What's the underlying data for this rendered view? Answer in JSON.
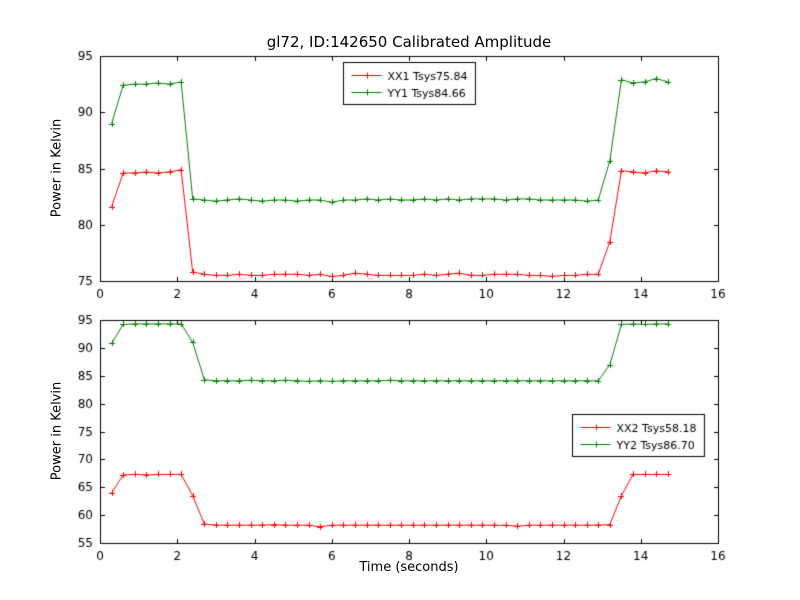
{
  "figure": {
    "title": "gl72, ID:142650 Calibrated Amplitude",
    "background": "#ffffff",
    "frame_color": "#000000"
  },
  "chart_data": [
    {
      "type": "line",
      "title": "gl72, ID:142650 Calibrated Amplitude",
      "xlabel": "",
      "ylabel": "Power in Kelvin",
      "xlim": [
        0,
        16
      ],
      "ylim": [
        75,
        95
      ],
      "xticks": [
        0,
        2,
        4,
        6,
        8,
        10,
        12,
        14,
        16
      ],
      "yticks": [
        75,
        80,
        85,
        90,
        95
      ],
      "grid": false,
      "legend_position": "top-center",
      "marker": "plus",
      "x": [
        0.3,
        0.6,
        0.9,
        1.2,
        1.5,
        1.8,
        2.1,
        2.4,
        2.7,
        3.0,
        3.3,
        3.6,
        3.9,
        4.2,
        4.5,
        4.8,
        5.1,
        5.4,
        5.7,
        6.0,
        6.3,
        6.6,
        6.9,
        7.2,
        7.5,
        7.8,
        8.1,
        8.4,
        8.7,
        9.0,
        9.3,
        9.6,
        9.9,
        10.2,
        10.5,
        10.8,
        11.1,
        11.4,
        11.7,
        12.0,
        12.3,
        12.6,
        12.9,
        13.2,
        13.5,
        13.8,
        14.1,
        14.4,
        14.7
      ],
      "series": [
        {
          "name": "XX1 Tsys75.84",
          "color": "#ff0000",
          "y": [
            81.6,
            84.6,
            84.6,
            84.7,
            84.6,
            84.7,
            84.9,
            75.8,
            75.6,
            75.5,
            75.5,
            75.6,
            75.5,
            75.5,
            75.6,
            75.6,
            75.6,
            75.5,
            75.6,
            75.4,
            75.5,
            75.7,
            75.6,
            75.5,
            75.5,
            75.5,
            75.5,
            75.6,
            75.5,
            75.6,
            75.7,
            75.5,
            75.5,
            75.6,
            75.6,
            75.6,
            75.5,
            75.5,
            75.4,
            75.5,
            75.5,
            75.6,
            75.6,
            78.5,
            84.8,
            84.7,
            84.6,
            84.8,
            84.7
          ]
        },
        {
          "name": "YY1 Tsys84.66",
          "color": "#008000",
          "y": [
            89.0,
            92.4,
            92.5,
            92.5,
            92.6,
            92.5,
            92.7,
            82.3,
            82.2,
            82.1,
            82.2,
            82.3,
            82.2,
            82.1,
            82.2,
            82.2,
            82.1,
            82.2,
            82.2,
            82.0,
            82.2,
            82.2,
            82.3,
            82.2,
            82.3,
            82.2,
            82.2,
            82.3,
            82.2,
            82.3,
            82.2,
            82.3,
            82.3,
            82.3,
            82.2,
            82.3,
            82.3,
            82.2,
            82.2,
            82.2,
            82.2,
            82.1,
            82.2,
            85.7,
            92.9,
            92.6,
            92.7,
            93.0,
            92.7
          ]
        }
      ]
    },
    {
      "type": "line",
      "title": "",
      "xlabel": "Time (seconds)",
      "ylabel": "Power in Kelvin",
      "xlim": [
        0,
        16
      ],
      "ylim": [
        55,
        95
      ],
      "xticks": [
        0,
        2,
        4,
        6,
        8,
        10,
        12,
        14,
        16
      ],
      "yticks": [
        55,
        60,
        65,
        70,
        75,
        80,
        85,
        90,
        95
      ],
      "grid": false,
      "legend_position": "right-middle",
      "marker": "plus",
      "x": [
        0.3,
        0.6,
        0.9,
        1.2,
        1.5,
        1.8,
        2.1,
        2.4,
        2.7,
        3.0,
        3.3,
        3.6,
        3.9,
        4.2,
        4.5,
        4.8,
        5.1,
        5.4,
        5.7,
        6.0,
        6.3,
        6.6,
        6.9,
        7.2,
        7.5,
        7.8,
        8.1,
        8.4,
        8.7,
        9.0,
        9.3,
        9.6,
        9.9,
        10.2,
        10.5,
        10.8,
        11.1,
        11.4,
        11.7,
        12.0,
        12.3,
        12.6,
        12.9,
        13.2,
        13.5,
        13.8,
        14.1,
        14.4,
        14.7
      ],
      "series": [
        {
          "name": "XX2 Tsys58.18",
          "color": "#ff0000",
          "y": [
            64.0,
            67.2,
            67.3,
            67.2,
            67.3,
            67.3,
            67.3,
            63.5,
            58.4,
            58.2,
            58.2,
            58.2,
            58.2,
            58.2,
            58.3,
            58.2,
            58.2,
            58.2,
            57.9,
            58.2,
            58.2,
            58.2,
            58.2,
            58.2,
            58.2,
            58.2,
            58.2,
            58.2,
            58.2,
            58.2,
            58.2,
            58.2,
            58.2,
            58.2,
            58.2,
            58.0,
            58.2,
            58.2,
            58.2,
            58.2,
            58.2,
            58.2,
            58.2,
            58.3,
            63.5,
            67.3,
            67.3,
            67.3,
            67.3
          ]
        },
        {
          "name": "YY2 Tsys86.70",
          "color": "#008000",
          "y": [
            90.8,
            94.2,
            94.3,
            94.3,
            94.3,
            94.3,
            94.3,
            91.0,
            84.3,
            84.1,
            84.1,
            84.1,
            84.2,
            84.1,
            84.1,
            84.2,
            84.1,
            84.0,
            84.1,
            84.0,
            84.1,
            84.1,
            84.1,
            84.1,
            84.2,
            84.1,
            84.1,
            84.1,
            84.1,
            84.1,
            84.1,
            84.1,
            84.1,
            84.1,
            84.1,
            84.1,
            84.1,
            84.1,
            84.1,
            84.1,
            84.1,
            84.1,
            84.1,
            87.0,
            94.2,
            94.3,
            94.2,
            94.3,
            94.3
          ]
        }
      ]
    }
  ]
}
